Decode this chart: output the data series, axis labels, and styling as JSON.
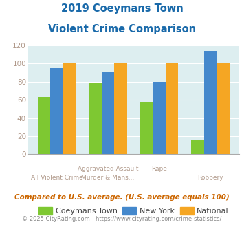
{
  "title_line1": "2019 Coeymans Town",
  "title_line2": "Violent Crime Comparison",
  "cat_labels_row1": [
    "",
    "Aggravated Assault",
    "Rape",
    ""
  ],
  "cat_labels_row2": [
    "All Violent Crime",
    "Murder & Mans...",
    "",
    "Robbery"
  ],
  "coeymans": [
    63,
    78,
    58,
    16
  ],
  "new_york": [
    95,
    91,
    80,
    114
  ],
  "national": [
    100,
    100,
    100,
    100
  ],
  "color_coeymans": "#7ec832",
  "color_newyork": "#4488cc",
  "color_national": "#f5a623",
  "ylim": [
    0,
    120
  ],
  "yticks": [
    0,
    20,
    40,
    60,
    80,
    100,
    120
  ],
  "bg_color": "#ddeef0",
  "legend_labels": [
    "Coeymans Town",
    "New York",
    "National"
  ],
  "footnote1": "Compared to U.S. average. (U.S. average equals 100)",
  "footnote2": "© 2025 CityRating.com - https://www.cityrating.com/crime-statistics/",
  "title_color": "#1a6aaa",
  "footnote1_color": "#cc6600",
  "footnote2_color": "#888888",
  "tick_color": "#b0998a",
  "label_color": "#b0998a",
  "bar_width": 0.25
}
